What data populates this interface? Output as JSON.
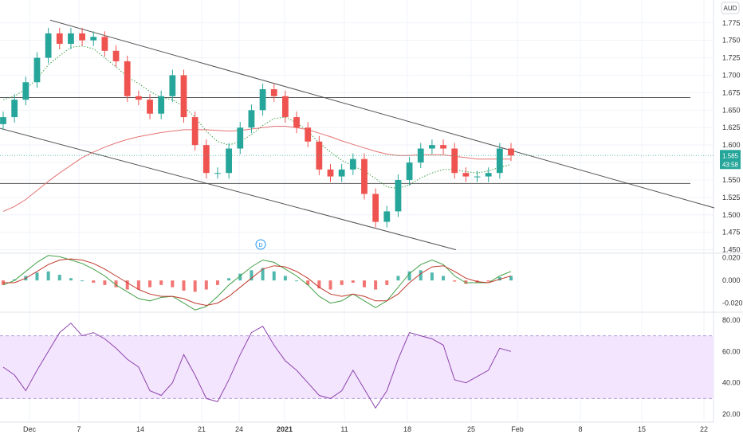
{
  "colors": {
    "up": "#26a69a",
    "down": "#ef5350",
    "ma_slow": "#e57373",
    "ma_fast": "#43a047",
    "trendline": "#555555",
    "grid": "#f0f3fa",
    "rsi_band": "#f3e5fd",
    "rsi_line": "#8e44ad",
    "macd": "#43a047",
    "signal": "#c0392b",
    "last_price_bg": "#26a69a"
  },
  "currency_badge": "AUD",
  "marker_icon": "D",
  "last_price": {
    "value": "1.585",
    "countdown": "43:58"
  },
  "x_axis": {
    "labels": [
      "Dec",
      "7",
      "14",
      "21",
      "24",
      "2021",
      "11",
      "18",
      "25",
      "Feb",
      "8",
      "15",
      "22"
    ]
  },
  "chart_data": [
    {
      "type": "candlestick",
      "panel": "price",
      "ylim": [
        1.445,
        1.785
      ],
      "y_ticks": [
        "1.775",
        "1.750",
        "1.725",
        "1.700",
        "1.675",
        "1.650",
        "1.625",
        "1.600",
        "1.575",
        "1.550",
        "1.525",
        "1.500",
        "1.475",
        "1.450"
      ],
      "close": [
        1.64,
        1.665,
        1.69,
        1.725,
        1.76,
        1.745,
        1.76,
        1.75,
        1.755,
        1.735,
        1.72,
        1.67,
        1.665,
        1.645,
        1.67,
        1.7,
        1.64,
        1.6,
        1.56,
        1.56,
        1.595,
        1.625,
        1.65,
        1.68,
        1.67,
        1.64,
        1.625,
        1.605,
        1.565,
        1.555,
        1.565,
        1.58,
        1.53,
        1.49,
        1.505,
        1.55,
        1.575,
        1.595,
        1.6,
        1.595,
        1.56,
        1.555,
        1.555,
        1.56,
        1.595,
        1.585
      ],
      "ma_fast": [
        1.665,
        1.67,
        1.68,
        1.695,
        1.715,
        1.728,
        1.74,
        1.742,
        1.738,
        1.725,
        1.712,
        1.698,
        1.688,
        1.677,
        1.668,
        1.665,
        1.655,
        1.64,
        1.62,
        1.605,
        1.6,
        1.605,
        1.615,
        1.628,
        1.638,
        1.64,
        1.632,
        1.62,
        1.603,
        1.59,
        1.578,
        1.57,
        1.563,
        1.552,
        1.54,
        1.538,
        1.543,
        1.553,
        1.56,
        1.565,
        1.565,
        1.562,
        1.56,
        1.563,
        1.568,
        1.572
      ],
      "ma_slow": [
        1.505,
        1.512,
        1.522,
        1.535,
        1.548,
        1.56,
        1.571,
        1.582,
        1.59,
        1.597,
        1.603,
        1.608,
        1.612,
        1.615,
        1.618,
        1.62,
        1.622,
        1.622,
        1.622,
        1.621,
        1.62,
        1.621,
        1.623,
        1.625,
        1.627,
        1.627,
        1.625,
        1.622,
        1.617,
        1.612,
        1.606,
        1.601,
        1.596,
        1.591,
        1.587,
        1.585,
        1.585,
        1.586,
        1.586,
        1.586,
        1.584,
        1.582,
        1.58,
        1.58,
        1.58,
        1.58
      ],
      "horizontal_levels": [
        1.668,
        1.545
      ],
      "trend_channel": {
        "upper": [
          1.779,
          1.51
        ],
        "lower": [
          1.624,
          1.45
        ]
      }
    },
    {
      "type": "histogram",
      "panel": "MACD",
      "ylim": [
        -0.028,
        0.024
      ],
      "y_ticks": [
        "0.020",
        "0.000",
        "-0.020"
      ],
      "histogram": [
        -0.004,
        0.001,
        0.004,
        0.007,
        0.008,
        0.005,
        0.002,
        0.0,
        -0.002,
        -0.004,
        -0.006,
        -0.008,
        -0.008,
        -0.006,
        -0.004,
        -0.006,
        -0.009,
        -0.01,
        -0.008,
        -0.004,
        0.002,
        0.006,
        0.009,
        0.011,
        0.008,
        0.004,
        0.0,
        -0.004,
        -0.007,
        -0.008,
        -0.004,
        -0.002,
        -0.006,
        -0.008,
        -0.004,
        0.004,
        0.008,
        0.009,
        0.007,
        0.004,
        -0.001,
        -0.003,
        -0.002,
        -0.001,
        0.003,
        0.004
      ],
      "macd": [
        -0.004,
        0.0,
        0.008,
        0.016,
        0.022,
        0.021,
        0.018,
        0.015,
        0.01,
        0.004,
        -0.004,
        -0.01,
        -0.016,
        -0.018,
        -0.015,
        -0.014,
        -0.02,
        -0.026,
        -0.023,
        -0.014,
        -0.004,
        0.004,
        0.012,
        0.018,
        0.016,
        0.01,
        0.004,
        -0.004,
        -0.014,
        -0.02,
        -0.018,
        -0.012,
        -0.018,
        -0.024,
        -0.018,
        -0.006,
        0.006,
        0.014,
        0.018,
        0.014,
        0.004,
        -0.002,
        -0.002,
        -0.002,
        0.004,
        0.008
      ],
      "signal": [
        -0.002,
        -0.002,
        0.002,
        0.008,
        0.014,
        0.018,
        0.019,
        0.018,
        0.015,
        0.01,
        0.004,
        -0.002,
        -0.008,
        -0.012,
        -0.014,
        -0.014,
        -0.016,
        -0.02,
        -0.022,
        -0.02,
        -0.014,
        -0.006,
        0.002,
        0.01,
        0.013,
        0.012,
        0.008,
        0.002,
        -0.006,
        -0.012,
        -0.014,
        -0.012,
        -0.014,
        -0.018,
        -0.018,
        -0.012,
        -0.002,
        0.006,
        0.012,
        0.013,
        0.008,
        0.002,
        -0.001,
        -0.002,
        0.001,
        0.004
      ]
    },
    {
      "type": "line",
      "panel": "RSI",
      "ylim": [
        15,
        85
      ],
      "y_ticks": [
        "80.00",
        "60.00",
        "40.00",
        "20.00"
      ],
      "band": [
        30,
        70
      ],
      "values": [
        50,
        45,
        35,
        48,
        60,
        72,
        78,
        70,
        72,
        68,
        62,
        55,
        50,
        35,
        32,
        40,
        58,
        45,
        30,
        28,
        42,
        58,
        72,
        76,
        64,
        54,
        48,
        40,
        32,
        30,
        35,
        48,
        36,
        24,
        35,
        55,
        72,
        70,
        68,
        64,
        42,
        40,
        44,
        48,
        62,
        60
      ]
    }
  ]
}
